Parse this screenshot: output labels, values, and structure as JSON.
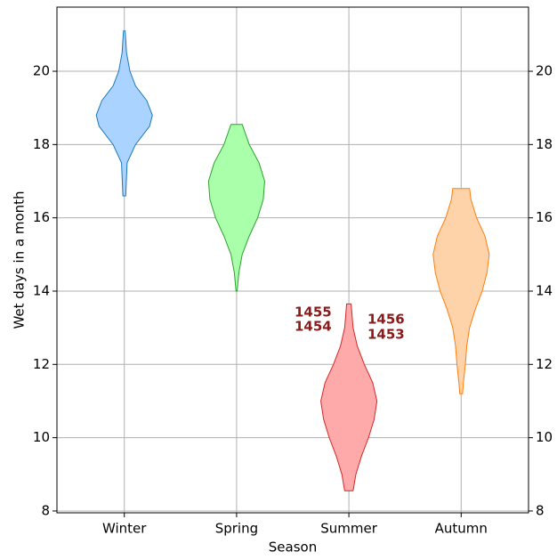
{
  "chart_data": {
    "type": "violin",
    "x_label": "Season",
    "y_label": "Wet days in a month",
    "categories": [
      "Winter",
      "Spring",
      "Summer",
      "Autumn"
    ],
    "ylim": [
      7.95,
      21.75
    ],
    "yticks": [
      8,
      10,
      12,
      14,
      16,
      18,
      20
    ],
    "grid": true,
    "right_axis": true,
    "series": [
      {
        "name": "Winter",
        "color": "#aad4ff",
        "edge_color": "#1f77b4",
        "y": [
          16.6,
          17.5,
          18,
          18.5,
          18.8,
          19.2,
          19.6,
          20,
          20.5,
          21.1
        ],
        "width": [
          0.05,
          0.1,
          0.4,
          0.9,
          1.0,
          0.8,
          0.4,
          0.2,
          0.08,
          0.03
        ]
      },
      {
        "name": "Spring",
        "color": "#aaffaa",
        "edge_color": "#2ca02c",
        "y": [
          14.0,
          14.5,
          15,
          15.5,
          16,
          16.5,
          17,
          17.5,
          18,
          18.55
        ],
        "width": [
          0.02,
          0.08,
          0.2,
          0.45,
          0.75,
          0.95,
          1.0,
          0.8,
          0.45,
          0.2
        ]
      },
      {
        "name": "Summer",
        "color": "#ffaaaa",
        "edge_color": "#d62728",
        "y": [
          8.55,
          9,
          9.5,
          10,
          10.5,
          11,
          11.5,
          12,
          12.5,
          13,
          13.65
        ],
        "width": [
          0.15,
          0.25,
          0.45,
          0.7,
          0.9,
          1.0,
          0.85,
          0.55,
          0.3,
          0.15,
          0.08
        ]
      },
      {
        "name": "Autumn",
        "color": "#ffd3aa",
        "edge_color": "#ff7f0e",
        "y": [
          11.2,
          11.5,
          12,
          12.5,
          13,
          13.5,
          14,
          14.5,
          15,
          15.5,
          16,
          16.5,
          16.8
        ],
        "width": [
          0.05,
          0.08,
          0.15,
          0.2,
          0.3,
          0.5,
          0.75,
          0.92,
          1.0,
          0.85,
          0.55,
          0.35,
          0.3
        ]
      }
    ],
    "annotations": [
      "1455",
      "1454",
      "1456",
      "1453"
    ]
  }
}
